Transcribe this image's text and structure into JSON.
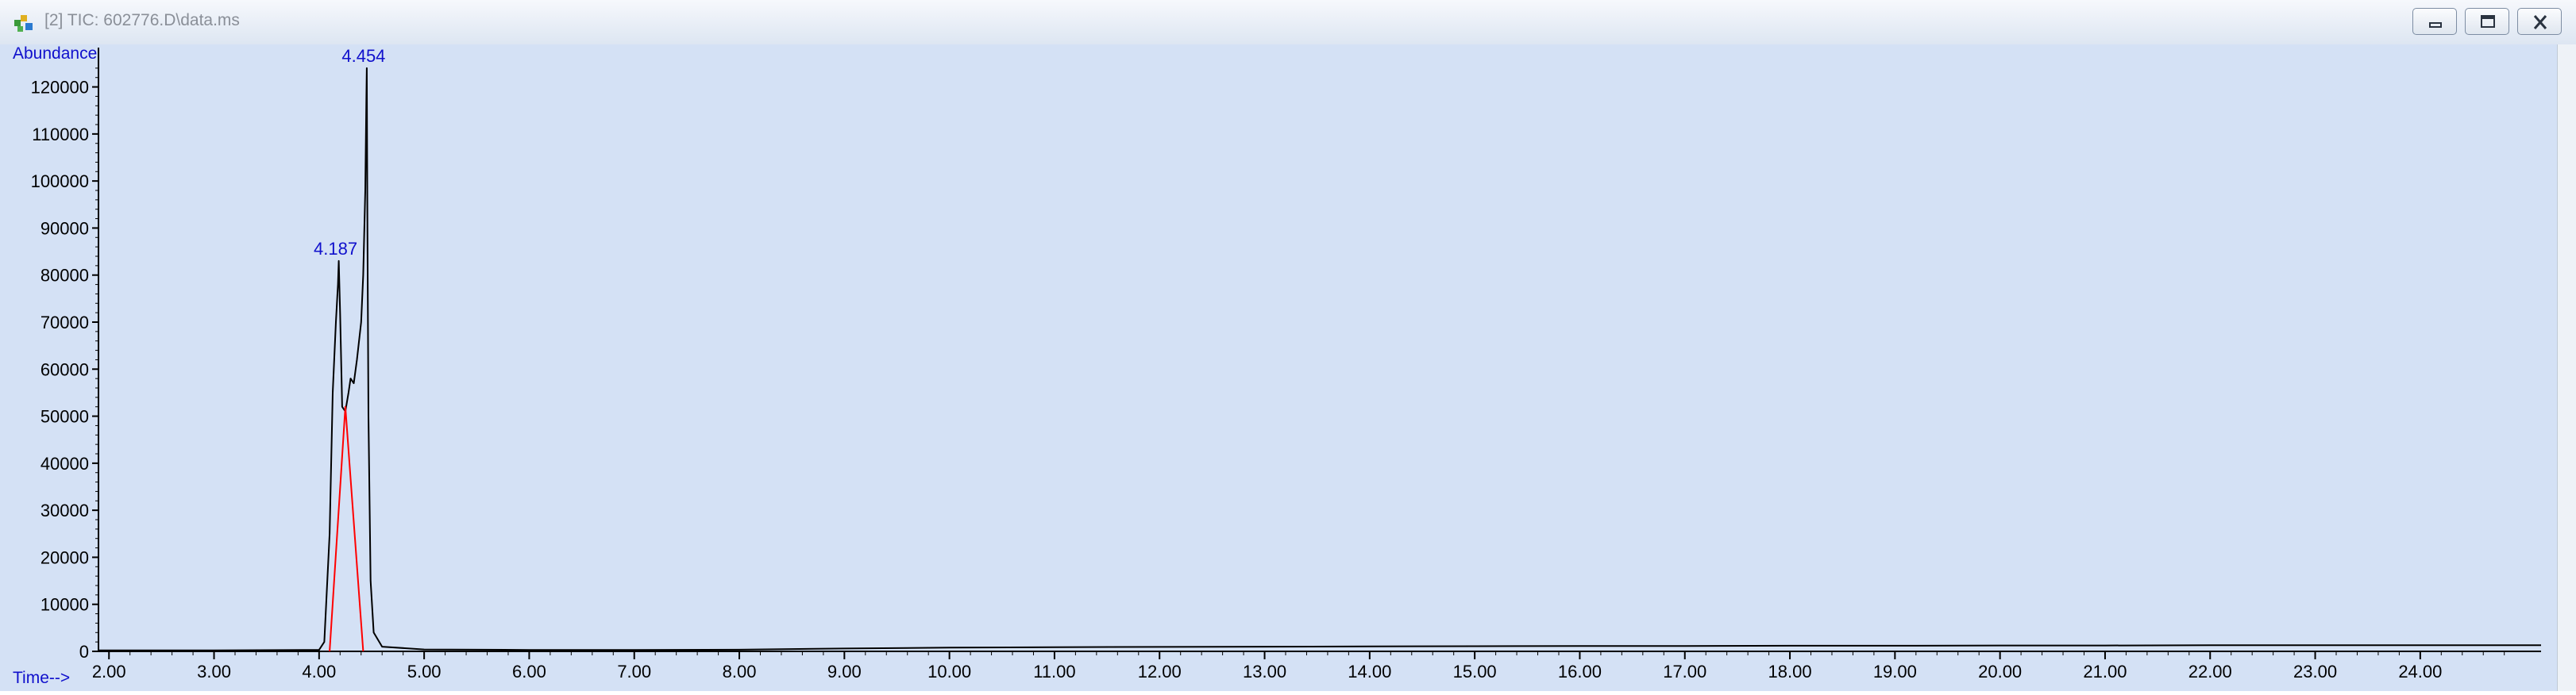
{
  "window": {
    "title": "[2] TIC: 602776.D\\data.ms",
    "icon": "chromatogram-app-icon",
    "buttons": {
      "minimize": "minimize-icon",
      "restore": "restore-icon",
      "close": "close-icon"
    }
  },
  "chart_data": {
    "type": "line",
    "title": "",
    "xlabel": "Time-->",
    "ylabel": "Abundance",
    "xlim": [
      1.9,
      25.15
    ],
    "ylim": [
      0,
      126000
    ],
    "x_ticks": [
      "2.00",
      "3.00",
      "4.00",
      "5.00",
      "6.00",
      "7.00",
      "8.00",
      "9.00",
      "10.00",
      "11.00",
      "12.00",
      "13.00",
      "14.00",
      "15.00",
      "16.00",
      "17.00",
      "18.00",
      "19.00",
      "20.00",
      "21.00",
      "22.00",
      "23.00",
      "24.00"
    ],
    "y_ticks": [
      "0",
      "10000",
      "20000",
      "30000",
      "40000",
      "50000",
      "60000",
      "70000",
      "80000",
      "90000",
      "100000",
      "110000",
      "120000"
    ],
    "series": [
      {
        "color": "#000000",
        "x": [
          1.9,
          3.0,
          4.0,
          4.05,
          4.1,
          4.13,
          4.16,
          4.18,
          4.187,
          4.2,
          4.22,
          4.25,
          4.28,
          4.3,
          4.33,
          4.36,
          4.4,
          4.42,
          4.44,
          4.45,
          4.454,
          4.46,
          4.47,
          4.49,
          4.52,
          4.6,
          5.0,
          6.0,
          7.0,
          8.0,
          9.0,
          10.0,
          11.0,
          12.0,
          13.0,
          14.0,
          15.0,
          16.0,
          17.0,
          18.0,
          19.0,
          20.0,
          21.0,
          22.0,
          23.0,
          24.0,
          25.15
        ],
        "y": [
          200,
          200,
          300,
          2000,
          25000,
          55000,
          70000,
          78000,
          83000,
          72000,
          52000,
          51000,
          55000,
          58000,
          57000,
          62000,
          70000,
          80000,
          98000,
          118000,
          124000,
          90000,
          50000,
          15000,
          4000,
          1000,
          400,
          300,
          300,
          350,
          600,
          800,
          900,
          950,
          1000,
          1050,
          1100,
          1150,
          1150,
          1200,
          1200,
          1250,
          1250,
          1300,
          1300,
          1300,
          1300
        ]
      },
      {
        "color": "#ff0000",
        "x": [
          4.1,
          4.25,
          4.42
        ],
        "y": [
          0,
          52000,
          0
        ]
      }
    ],
    "peak_labels": [
      {
        "x": 4.187,
        "y": 83000,
        "text": "4.187"
      },
      {
        "x": 4.454,
        "y": 124000,
        "text": "4.454"
      }
    ]
  }
}
